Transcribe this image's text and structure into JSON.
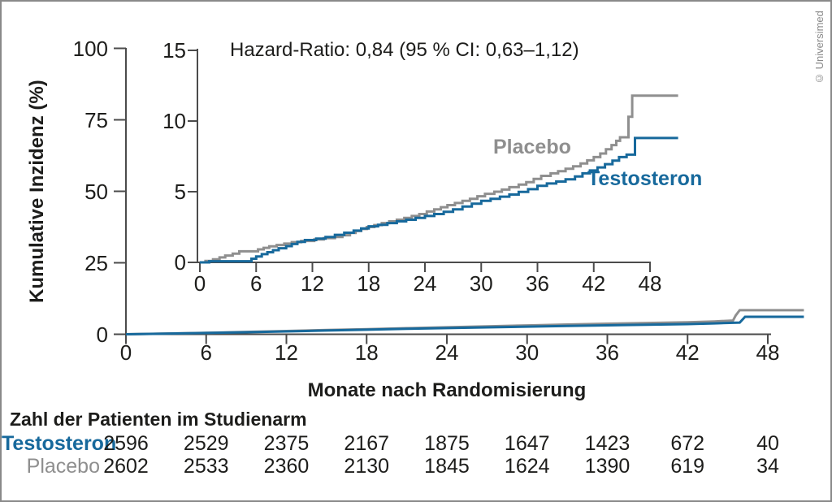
{
  "copyright": "© Universimed",
  "annotation": "Hazard-Ratio: 0,84 (95 % CI: 0,63–1,12)",
  "axis": {
    "ylabel": "Kumulative Inzidenz (%)",
    "xlabel": "Monate nach Randomisierung"
  },
  "series_labels": {
    "placebo": "Placebo",
    "testosteron": "Testosteron"
  },
  "colors": {
    "testosteron": "#17699C",
    "placebo": "#8F8F8F",
    "axis": "#4B4B4B",
    "text": "#1D1D1B",
    "frame": "#8A8A8A"
  },
  "chart_data": [
    {
      "id": "inset",
      "type": "line",
      "subtype": "step-after",
      "title": "Hazard-Ratio: 0,84 (95 % CI: 0,63–1,12)",
      "xlabel": "Monate nach Randomisierung",
      "ylabel": "Kumulative Inzidenz (%)",
      "xlim": [
        0,
        51
      ],
      "ylim": [
        0,
        15
      ],
      "x_ticks": [
        0,
        6,
        12,
        18,
        24,
        30,
        36,
        42,
        48
      ],
      "y_ticks": [
        0,
        5,
        10,
        15
      ],
      "grid": false,
      "legend_position": "inline-labels",
      "series": [
        {
          "name": "Placebo",
          "points": [
            [
              0,
              0
            ],
            [
              0.6,
              0.1
            ],
            [
              1.4,
              0.22
            ],
            [
              2.1,
              0.35
            ],
            [
              2.7,
              0.48
            ],
            [
              3.5,
              0.62
            ],
            [
              4.2,
              0.78
            ],
            [
              6.2,
              0.92
            ],
            [
              6.8,
              1.03
            ],
            [
              7.4,
              1.13
            ],
            [
              8.2,
              1.23
            ],
            [
              9,
              1.33
            ],
            [
              9.8,
              1.43
            ],
            [
              10.8,
              1.52
            ],
            [
              12.2,
              1.62
            ],
            [
              13.2,
              1.72
            ],
            [
              14.4,
              1.8
            ],
            [
              15.2,
              1.92
            ],
            [
              16,
              2.08
            ],
            [
              16.6,
              2.22
            ],
            [
              17.2,
              2.36
            ],
            [
              17.8,
              2.5
            ],
            [
              18.6,
              2.64
            ],
            [
              19.4,
              2.78
            ],
            [
              20.2,
              2.9
            ],
            [
              21,
              3.02
            ],
            [
              21.8,
              3.15
            ],
            [
              22.6,
              3.28
            ],
            [
              23.4,
              3.42
            ],
            [
              24.2,
              3.6
            ],
            [
              25,
              3.75
            ],
            [
              25.7,
              3.9
            ],
            [
              26.4,
              4.05
            ],
            [
              27.2,
              4.2
            ],
            [
              28,
              4.35
            ],
            [
              28.8,
              4.5
            ],
            [
              29.6,
              4.68
            ],
            [
              30.4,
              4.85
            ],
            [
              31.4,
              5.0
            ],
            [
              32.2,
              5.15
            ],
            [
              33,
              5.32
            ],
            [
              34,
              5.5
            ],
            [
              34.8,
              5.68
            ],
            [
              35.6,
              5.9
            ],
            [
              36.4,
              6.12
            ],
            [
              37.4,
              6.3
            ],
            [
              38.2,
              6.45
            ],
            [
              39,
              6.62
            ],
            [
              39.8,
              6.8
            ],
            [
              40.6,
              7.0
            ],
            [
              41.3,
              7.22
            ],
            [
              42,
              7.45
            ],
            [
              42.7,
              7.7
            ],
            [
              43.3,
              8.0
            ],
            [
              43.9,
              8.3
            ],
            [
              44.4,
              8.6
            ],
            [
              44.8,
              8.85
            ],
            [
              45.7,
              10.3
            ],
            [
              46.1,
              11.8
            ],
            [
              51,
              11.8
            ]
          ]
        },
        {
          "name": "Testosteron",
          "points": [
            [
              0,
              0
            ],
            [
              1,
              0.08
            ],
            [
              5.5,
              0.26
            ],
            [
              6,
              0.42
            ],
            [
              6.6,
              0.58
            ],
            [
              7.2,
              0.72
            ],
            [
              7.8,
              0.86
            ],
            [
              8.4,
              1.0
            ],
            [
              9.2,
              1.15
            ],
            [
              9.8,
              1.3
            ],
            [
              10.4,
              1.45
            ],
            [
              11.2,
              1.58
            ],
            [
              12.4,
              1.68
            ],
            [
              13.4,
              1.8
            ],
            [
              14.4,
              1.95
            ],
            [
              15.4,
              2.1
            ],
            [
              16.4,
              2.25
            ],
            [
              17.2,
              2.4
            ],
            [
              18,
              2.55
            ],
            [
              19,
              2.66
            ],
            [
              20,
              2.78
            ],
            [
              21,
              2.9
            ],
            [
              22,
              3.02
            ],
            [
              23,
              3.15
            ],
            [
              24,
              3.28
            ],
            [
              25,
              3.42
            ],
            [
              26,
              3.58
            ],
            [
              27,
              3.75
            ],
            [
              28,
              3.95
            ],
            [
              29,
              4.15
            ],
            [
              30,
              4.35
            ],
            [
              31,
              4.5
            ],
            [
              32,
              4.65
            ],
            [
              33,
              4.8
            ],
            [
              34,
              4.98
            ],
            [
              35,
              5.18
            ],
            [
              36,
              5.42
            ],
            [
              37,
              5.58
            ],
            [
              38,
              5.72
            ],
            [
              39,
              5.88
            ],
            [
              40,
              6.08
            ],
            [
              40.8,
              6.3
            ],
            [
              41.6,
              6.5
            ],
            [
              42.4,
              6.72
            ],
            [
              43.2,
              6.95
            ],
            [
              44,
              7.2
            ],
            [
              44.7,
              7.45
            ],
            [
              45.5,
              7.62
            ],
            [
              46.4,
              8.8
            ],
            [
              51,
              8.8
            ]
          ]
        }
      ]
    },
    {
      "id": "main-overview",
      "type": "line",
      "subtype": "linear",
      "xlabel": "Monate nach Randomisierung",
      "ylabel": "Kumulative Inzidenz (%)",
      "xlim": [
        0,
        51
      ],
      "ylim": [
        0,
        100
      ],
      "x_ticks": [
        0,
        6,
        12,
        18,
        24,
        30,
        36,
        42,
        48
      ],
      "y_ticks": [
        0,
        25,
        50,
        75,
        100
      ],
      "grid": false,
      "series": [
        {
          "name": "Placebo",
          "points": [
            [
              0,
              0
            ],
            [
              3,
              0.25
            ],
            [
              6,
              0.52
            ],
            [
              9,
              0.82
            ],
            [
              12,
              1.15
            ],
            [
              15,
              1.48
            ],
            [
              18,
              1.8
            ],
            [
              21,
              2.12
            ],
            [
              24,
              2.45
            ],
            [
              27,
              2.78
            ],
            [
              30,
              3.1
            ],
            [
              33,
              3.4
            ],
            [
              36,
              3.7
            ],
            [
              39,
              3.95
            ],
            [
              42,
              4.2
            ],
            [
              44,
              4.5
            ],
            [
              45.4,
              4.8
            ],
            [
              45.6,
              6.6
            ],
            [
              45.9,
              8.4
            ],
            [
              50.7,
              8.4
            ]
          ]
        },
        {
          "name": "Testosteron",
          "points": [
            [
              0,
              0
            ],
            [
              3,
              0.2
            ],
            [
              6,
              0.45
            ],
            [
              9,
              0.72
            ],
            [
              12,
              1.0
            ],
            [
              15,
              1.3
            ],
            [
              18,
              1.58
            ],
            [
              21,
              1.9
            ],
            [
              24,
              2.15
            ],
            [
              27,
              2.42
            ],
            [
              30,
              2.68
            ],
            [
              33,
              2.9
            ],
            [
              36,
              3.12
            ],
            [
              39,
              3.35
            ],
            [
              42,
              3.55
            ],
            [
              44,
              3.8
            ],
            [
              45.9,
              4.1
            ],
            [
              46.3,
              6.1
            ],
            [
              50.7,
              6.1
            ]
          ]
        }
      ]
    }
  ],
  "risk_table": {
    "title": "Zahl der Patienten im Studienarm",
    "months": [
      0,
      6,
      12,
      18,
      24,
      30,
      36,
      42,
      48
    ],
    "rows": [
      {
        "label": "Testosteron",
        "values": [
          "2596",
          "2529",
          "2375",
          "2167",
          "1875",
          "1647",
          "1423",
          "672",
          "40"
        ]
      },
      {
        "label": "Placebo",
        "values": [
          "2602",
          "2533",
          "2360",
          "2130",
          "1845",
          "1624",
          "1390",
          "619",
          "34"
        ]
      }
    ]
  }
}
